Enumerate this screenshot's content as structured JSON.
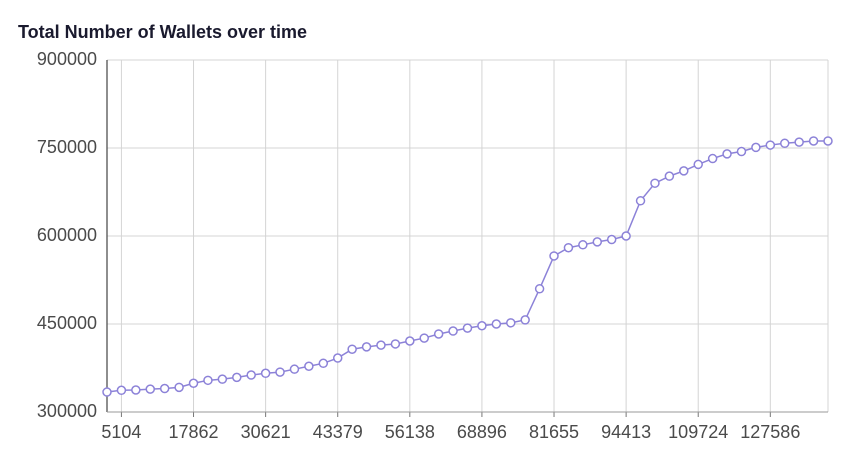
{
  "chart_data": {
    "type": "line",
    "title": "Total Number of Wallets over time",
    "categories": [
      null,
      "5104",
      null,
      null,
      null,
      null,
      "17862",
      null,
      null,
      null,
      null,
      "30621",
      null,
      null,
      null,
      null,
      "43379",
      null,
      null,
      null,
      null,
      "56138",
      null,
      null,
      null,
      null,
      "68896",
      null,
      null,
      null,
      null,
      "81655",
      null,
      null,
      null,
      null,
      "94413",
      null,
      null,
      null,
      null,
      "109724",
      null,
      null,
      null,
      null,
      "127586",
      null,
      null,
      null,
      null
    ],
    "series": [
      {
        "name": "Total Number of Wallets",
        "color": "#8c82d8",
        "values": [
          334000,
          337000,
          337500,
          339000,
          340000,
          342000,
          349000,
          354000,
          356000,
          359000,
          363000,
          366000,
          368000,
          373000,
          378000,
          383000,
          392000,
          407000,
          411000,
          414000,
          416000,
          421000,
          426000,
          433000,
          438000,
          443000,
          447000,
          450000,
          452000,
          457000,
          510000,
          566000,
          580000,
          585000,
          590000,
          594000,
          600000,
          660000,
          690000,
          702000,
          711000,
          722000,
          732000,
          740000,
          744000,
          751000,
          755000,
          758000,
          760000,
          762000,
          762000
        ]
      }
    ],
    "ylim": [
      300000,
      900000
    ],
    "yticks": [
      300000,
      450000,
      600000,
      750000,
      900000
    ],
    "grid": true
  }
}
